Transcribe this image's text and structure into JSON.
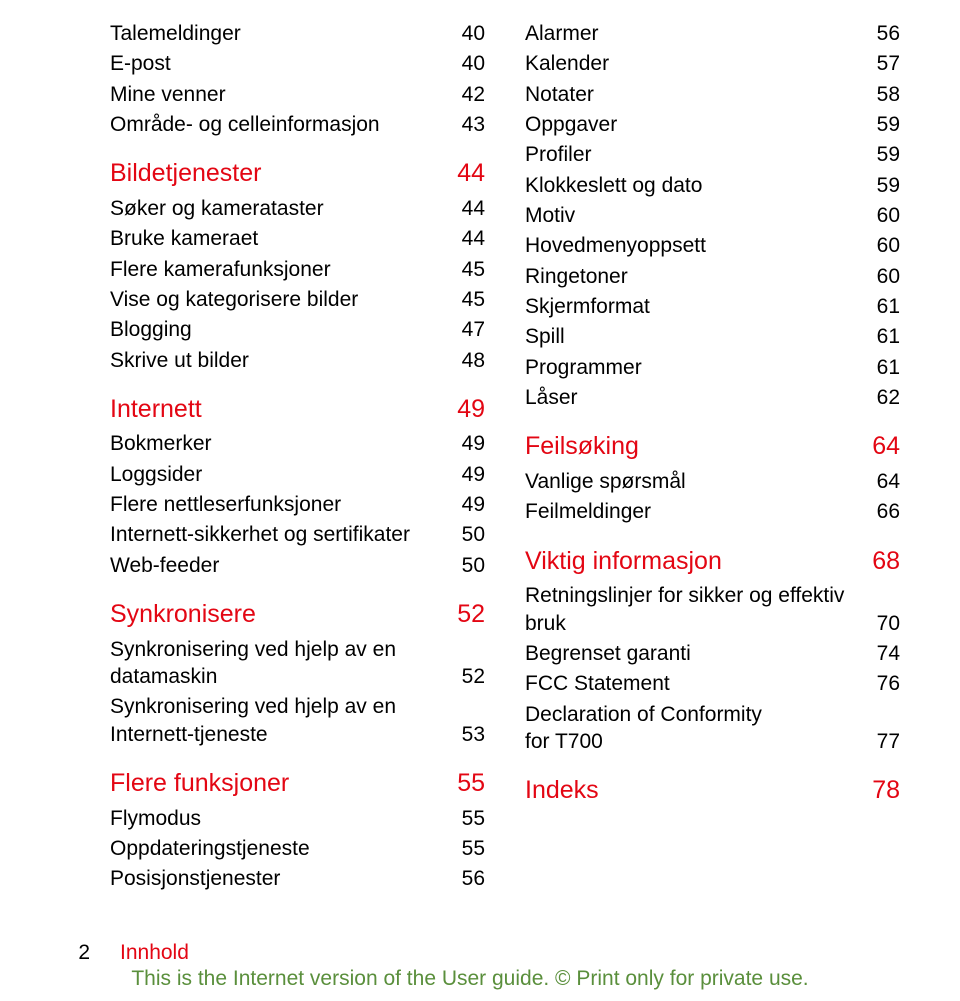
{
  "colors": {
    "accent": "#e30613",
    "text": "#000000",
    "footer": "#5a8f3c",
    "background": "#ffffff"
  },
  "typography": {
    "heading_fontsize": 25,
    "item_fontsize": 21,
    "footer_fontsize": 21,
    "font_family": "Arial"
  },
  "left": [
    {
      "t": "item",
      "label": "Talemeldinger",
      "page": "40"
    },
    {
      "t": "item",
      "label": "E-post",
      "page": "40"
    },
    {
      "t": "item",
      "label": "Mine venner",
      "page": "42"
    },
    {
      "t": "item",
      "label": "Område- og celleinformasjon",
      "page": "43"
    },
    {
      "t": "heading",
      "label": "Bildetjenester",
      "page": "44"
    },
    {
      "t": "item",
      "label": "Søker og kamerataster",
      "page": "44"
    },
    {
      "t": "item",
      "label": "Bruke kameraet",
      "page": "44"
    },
    {
      "t": "item",
      "label": "Flere kamerafunksjoner",
      "page": "45"
    },
    {
      "t": "item",
      "label": "Vise og kategorisere bilder",
      "page": "45"
    },
    {
      "t": "item",
      "label": "Blogging",
      "page": "47"
    },
    {
      "t": "item",
      "label": "Skrive ut bilder",
      "page": "48"
    },
    {
      "t": "heading",
      "label": "Internett",
      "page": "49"
    },
    {
      "t": "item",
      "label": "Bokmerker",
      "page": "49"
    },
    {
      "t": "item",
      "label": "Loggsider",
      "page": "49"
    },
    {
      "t": "item",
      "label": "Flere nettleserfunksjoner",
      "page": "49"
    },
    {
      "t": "item",
      "label": "Internett-sikkerhet og sertifikater",
      "page": "50"
    },
    {
      "t": "item",
      "label": "Web-feeder",
      "page": "50"
    },
    {
      "t": "heading",
      "label": "Synkronisere",
      "page": "52"
    },
    {
      "t": "wrap",
      "label1": "Synkronisering ved hjelp av en",
      "label2": "datamaskin",
      "page": "52"
    },
    {
      "t": "wrap",
      "label1": "Synkronisering ved hjelp av en",
      "label2": "Internett-tjeneste",
      "page": "53"
    },
    {
      "t": "heading",
      "label": "Flere funksjoner",
      "page": "55"
    },
    {
      "t": "item",
      "label": "Flymodus",
      "page": "55"
    },
    {
      "t": "item",
      "label": "Oppdateringstjeneste",
      "page": "55"
    },
    {
      "t": "item",
      "label": "Posisjonstjenester",
      "page": "56"
    }
  ],
  "right": [
    {
      "t": "item",
      "label": "Alarmer",
      "page": "56"
    },
    {
      "t": "item",
      "label": "Kalender",
      "page": "57"
    },
    {
      "t": "item",
      "label": "Notater",
      "page": "58"
    },
    {
      "t": "item",
      "label": "Oppgaver",
      "page": "59"
    },
    {
      "t": "item",
      "label": "Profiler",
      "page": "59"
    },
    {
      "t": "item",
      "label": "Klokkeslett og dato",
      "page": "59"
    },
    {
      "t": "item",
      "label": "Motiv",
      "page": "60"
    },
    {
      "t": "item",
      "label": "Hovedmenyoppsett",
      "page": "60"
    },
    {
      "t": "item",
      "label": "Ringetoner",
      "page": "60"
    },
    {
      "t": "item",
      "label": "Skjermformat",
      "page": "61"
    },
    {
      "t": "item",
      "label": "Spill",
      "page": "61"
    },
    {
      "t": "item",
      "label": "Programmer",
      "page": "61"
    },
    {
      "t": "item",
      "label": "Låser",
      "page": "62"
    },
    {
      "t": "heading",
      "label": "Feilsøking",
      "page": "64"
    },
    {
      "t": "item",
      "label": "Vanlige spørsmål",
      "page": "64"
    },
    {
      "t": "item",
      "label": "Feilmeldinger",
      "page": "66"
    },
    {
      "t": "heading",
      "label": "Viktig informasjon",
      "page": "68"
    },
    {
      "t": "wrap",
      "label1": "Retningslinjer for sikker og effektiv",
      "label2": "bruk",
      "page": "70"
    },
    {
      "t": "item",
      "label": "Begrenset garanti",
      "page": "74"
    },
    {
      "t": "item",
      "label": "FCC Statement",
      "page": "76"
    },
    {
      "t": "wrap",
      "label1": "Declaration of Conformity",
      "label2": "for T700",
      "page": "77"
    },
    {
      "t": "heading",
      "label": "Indeks",
      "page": "78"
    }
  ],
  "footer": {
    "page_number": "2",
    "section": "Innhold",
    "disclaimer": "This is the Internet version of the User guide. © Print only for private use."
  }
}
